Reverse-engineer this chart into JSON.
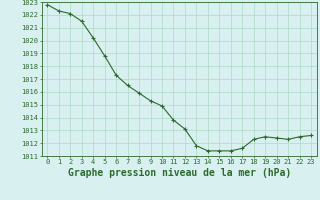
{
  "x": [
    0,
    1,
    2,
    3,
    4,
    5,
    6,
    7,
    8,
    9,
    10,
    11,
    12,
    13,
    14,
    15,
    16,
    17,
    18,
    19,
    20,
    21,
    22,
    23
  ],
  "y": [
    1022.8,
    1022.3,
    1022.1,
    1021.5,
    1020.2,
    1018.8,
    1017.3,
    1016.5,
    1015.9,
    1015.3,
    1014.9,
    1013.8,
    1013.1,
    1011.8,
    1011.4,
    1011.4,
    1011.4,
    1011.6,
    1012.3,
    1012.5,
    1012.4,
    1012.3,
    1012.5,
    1012.6
  ],
  "ylim": [
    1011,
    1023
  ],
  "xlim": [
    -0.5,
    23.5
  ],
  "yticks": [
    1011,
    1012,
    1013,
    1014,
    1015,
    1016,
    1017,
    1018,
    1019,
    1020,
    1021,
    1022,
    1023
  ],
  "xticks": [
    0,
    1,
    2,
    3,
    4,
    5,
    6,
    7,
    8,
    9,
    10,
    11,
    12,
    13,
    14,
    15,
    16,
    17,
    18,
    19,
    20,
    21,
    22,
    23
  ],
  "xlabel": "Graphe pression niveau de la mer (hPa)",
  "line_color": "#2d6a2d",
  "marker": "+",
  "marker_color": "#2d6a2d",
  "bg_color": "#d8f0f0",
  "grid_color": "#b0d8c8",
  "tick_label_color": "#2d6a2d",
  "xlabel_color": "#2d6a2d",
  "axis_color": "#2d6a2d",
  "tick_fontsize": 5,
  "xlabel_fontsize": 7
}
